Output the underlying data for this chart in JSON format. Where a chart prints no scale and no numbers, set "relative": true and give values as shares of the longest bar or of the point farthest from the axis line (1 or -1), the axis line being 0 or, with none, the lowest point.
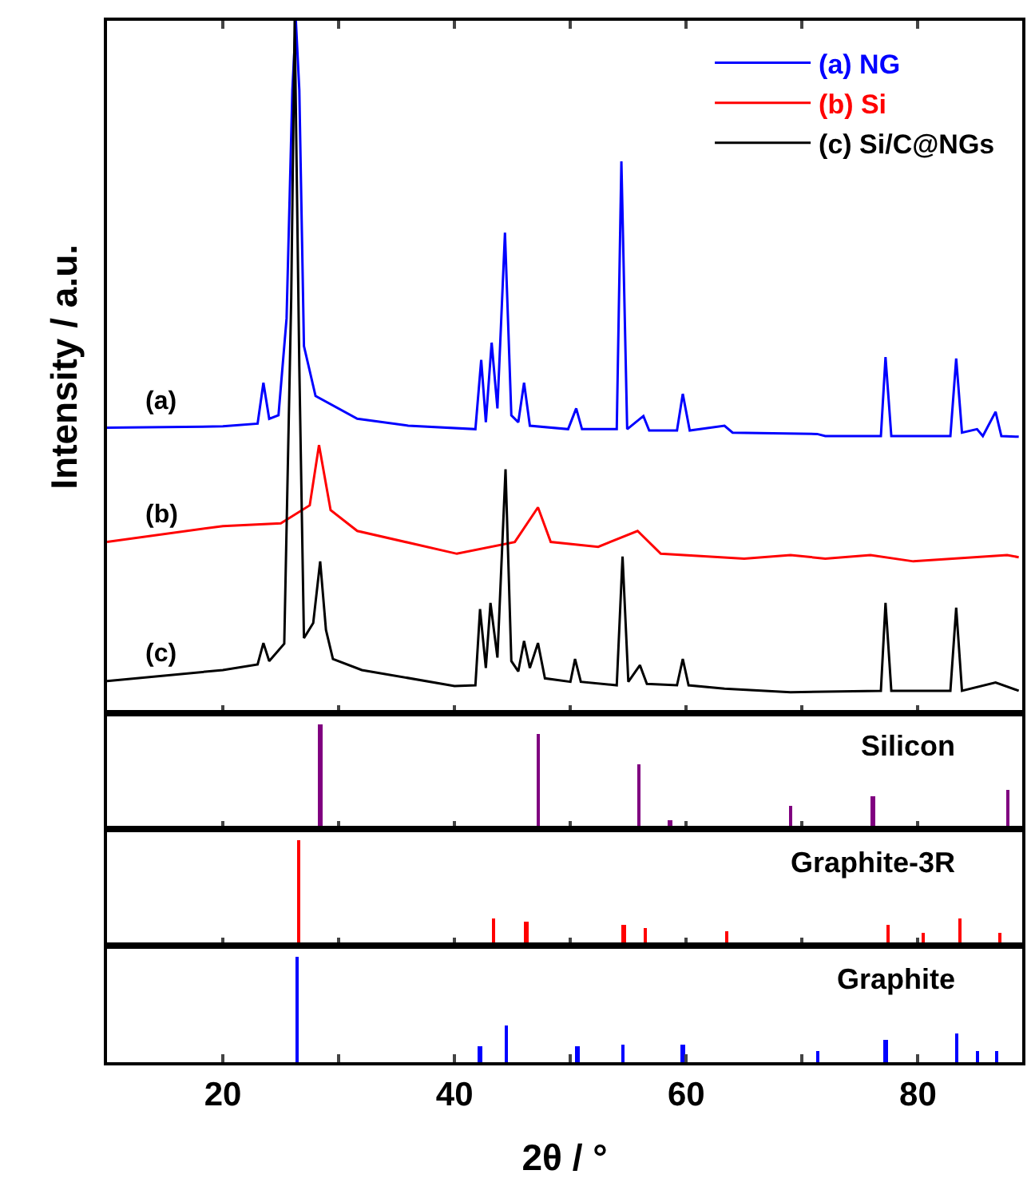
{
  "chart_data": [
    {
      "type": "line",
      "relative": true,
      "ylabel": "Intensity / a.u.",
      "xlim": [
        10,
        89
      ],
      "xticks": [
        20,
        {
          "value": 30,
          "label": null
        },
        40,
        {
          "value": 50,
          "label": null
        },
        60,
        {
          "value": 70,
          "label": null
        },
        80
      ],
      "tick_labels": false,
      "legend": "top right",
      "grid": false,
      "marker": "none",
      "line_style": "solid",
      "annotations": [
        "(a)",
        "(b)",
        "(c)"
      ],
      "series": [
        {
          "name": "(a) NG",
          "color": "#0000ff",
          "x": [
            10,
            20,
            23.0,
            23.5,
            24.0,
            24.8,
            25.5,
            26.0,
            26.3,
            26.6,
            27.0,
            28.0,
            31.6,
            36,
            41.8,
            42.3,
            42.7,
            43.2,
            43.7,
            44.35,
            44.9,
            45.5,
            46.0,
            46.5,
            49.8,
            50.5,
            51.0,
            54.0,
            54.4,
            54.9,
            56.3,
            56.8,
            59.2,
            59.7,
            60.3,
            63.3,
            64,
            71.3,
            72,
            76.8,
            77.2,
            77.7,
            82.8,
            83.3,
            83.8,
            85.1,
            85.6,
            86.7,
            87.2,
            88.7
          ],
          "values": [
            0.412,
            0.414,
            0.418,
            0.477,
            0.425,
            0.43,
            0.57,
            0.9,
            1.0,
            0.9,
            0.53,
            0.458,
            0.425,
            0.415,
            0.41,
            0.51,
            0.42,
            0.535,
            0.44,
            0.694,
            0.43,
            0.42,
            0.477,
            0.415,
            0.41,
            0.44,
            0.41,
            0.41,
            0.797,
            0.41,
            0.429,
            0.408,
            0.408,
            0.461,
            0.408,
            0.415,
            0.405,
            0.403,
            0.4,
            0.4,
            0.514,
            0.4,
            0.4,
            0.512,
            0.405,
            0.41,
            0.4,
            0.435,
            0.4,
            0.399
          ]
        },
        {
          "name": "(b) Si",
          "color": "#ff0000",
          "x": [
            10,
            20,
            25,
            27.5,
            28.3,
            29.3,
            31.6,
            40.2,
            45.2,
            47.2,
            48.3,
            52.4,
            55.8,
            57.8,
            65,
            69,
            72,
            75.9,
            79.6,
            87.7,
            88.7
          ],
          "values": [
            0.247,
            0.27,
            0.274,
            0.3,
            0.387,
            0.293,
            0.263,
            0.23,
            0.247,
            0.297,
            0.247,
            0.24,
            0.263,
            0.23,
            0.223,
            0.228,
            0.223,
            0.228,
            0.219,
            0.228,
            0.225
          ]
        },
        {
          "name": "(c) Si/C@NGs",
          "color": "#000000",
          "x": [
            10,
            20,
            23.0,
            23.5,
            24.0,
            25.3,
            25.9,
            26.2,
            26.6,
            27.0,
            27.8,
            28.4,
            28.9,
            29.5,
            32,
            40,
            41.8,
            42.2,
            42.7,
            43.1,
            43.7,
            44.4,
            44.9,
            45.5,
            46.0,
            46.5,
            47.2,
            47.8,
            50.0,
            50.4,
            50.9,
            54.0,
            54.5,
            55.0,
            56.0,
            56.6,
            59.2,
            59.7,
            60.2,
            63.3,
            69,
            76.8,
            77.2,
            77.7,
            82.8,
            83.3,
            83.8,
            86.7,
            88.7
          ],
          "values": [
            0.046,
            0.062,
            0.07,
            0.101,
            0.075,
            0.1,
            0.6,
            1.0,
            0.5,
            0.108,
            0.13,
            0.219,
            0.12,
            0.078,
            0.062,
            0.039,
            0.04,
            0.15,
            0.065,
            0.159,
            0.08,
            0.352,
            0.075,
            0.06,
            0.104,
            0.065,
            0.101,
            0.05,
            0.045,
            0.078,
            0.045,
            0.04,
            0.226,
            0.045,
            0.069,
            0.042,
            0.04,
            0.078,
            0.04,
            0.035,
            0.03,
            0.032,
            0.159,
            0.032,
            0.032,
            0.152,
            0.032,
            0.044,
            0.032
          ]
        }
      ]
    },
    {
      "type": "bar",
      "relative": true,
      "xlim": [
        10,
        89
      ],
      "xticks": [
        20,
        {
          "value": 30,
          "label": null
        },
        40,
        {
          "value": 50,
          "label": null
        },
        60,
        {
          "value": 70,
          "label": null
        },
        80
      ],
      "tick_labels": false,
      "grid": false,
      "annotations": [
        "Silicon"
      ],
      "x": [
        28.4,
        47.2,
        55.9,
        58.6,
        69.0,
        76.1,
        87.8
      ],
      "values": [
        1,
        0.91,
        0.61,
        0.09,
        0.23,
        0.31,
        0.38
      ],
      "color": "#800080"
    },
    {
      "type": "bar",
      "relative": true,
      "xlim": [
        10,
        89
      ],
      "xticks": [
        20,
        {
          "value": 30,
          "label": null
        },
        40,
        {
          "value": 50,
          "label": null
        },
        60,
        {
          "value": 70,
          "label": null
        },
        80
      ],
      "tick_labels": false,
      "grid": false,
      "annotations": [
        "Graphite-3R"
      ],
      "x": [
        26.5,
        43.4,
        46.2,
        54.6,
        56.5,
        63.5,
        77.4,
        80.4,
        83.6,
        87.1
      ],
      "values": [
        1,
        0.25,
        0.22,
        0.19,
        0.16,
        0.13,
        0.19,
        0.12,
        0.25,
        0.12
      ],
      "color": "#ff0000"
    },
    {
      "type": "bar",
      "relative": true,
      "xlabel": "2θ / °",
      "xlim": [
        10,
        89
      ],
      "xticks": [
        20,
        {
          "value": 30,
          "label": null
        },
        40,
        {
          "value": 50,
          "label": null
        },
        60,
        {
          "value": 70,
          "label": null
        },
        80
      ],
      "tick_labels": "x",
      "grid": false,
      "annotations": [
        "Graphite"
      ],
      "x": [
        26.4,
        42.2,
        44.45,
        50.6,
        54.5,
        59.7,
        71.3,
        77.2,
        83.3,
        85.1,
        86.8
      ],
      "values": [
        1,
        0.146,
        0.34,
        0.146,
        0.16,
        0.16,
        0.107,
        0.21,
        0.27,
        0.107,
        0.107
      ],
      "color": "#0000ff"
    }
  ]
}
